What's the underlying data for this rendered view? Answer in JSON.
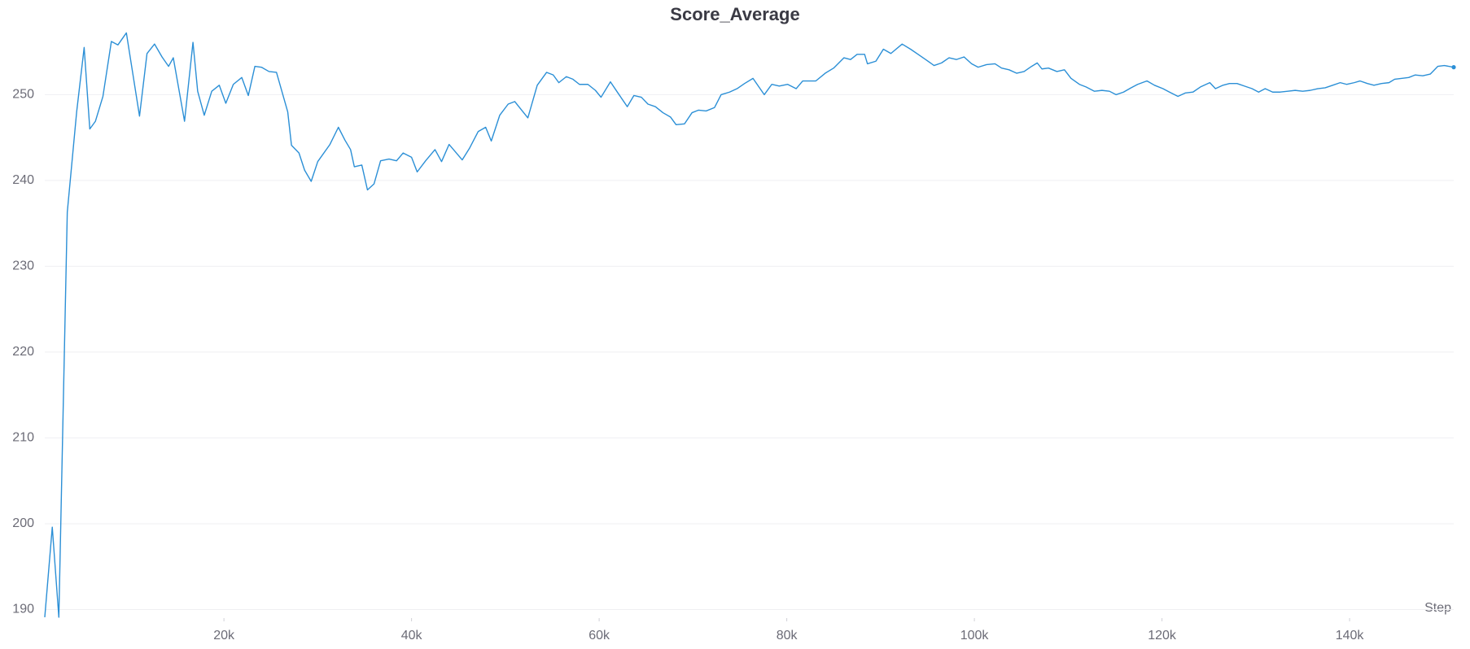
{
  "chart_data": {
    "type": "line",
    "title": "Score_Average",
    "x_label": "Step",
    "color": "#2b8fd6",
    "grid": true,
    "xlim": [
      900,
      151100
    ],
    "ylim": [
      189,
      258
    ],
    "xticks": [
      {
        "value": 20000,
        "label": "20k"
      },
      {
        "value": 40000,
        "label": "40k"
      },
      {
        "value": 60000,
        "label": "60k"
      },
      {
        "value": 80000,
        "label": "80k"
      },
      {
        "value": 100000,
        "label": "100k"
      },
      {
        "value": 120000,
        "label": "120k"
      },
      {
        "value": 140000,
        "label": "140k"
      }
    ],
    "yticks": [
      190,
      200,
      210,
      220,
      230,
      240,
      250
    ],
    "x": [
      900,
      1700,
      2400,
      3300,
      4300,
      5100,
      5700,
      6300,
      7100,
      8000,
      8700,
      9600,
      11000,
      11800,
      12600,
      13400,
      14100,
      14600,
      15800,
      16700,
      17200,
      17900,
      18700,
      19500,
      20200,
      21000,
      21900,
      22600,
      23300,
      24000,
      24800,
      25600,
      26800,
      27200,
      28000,
      28600,
      29300,
      30000,
      31300,
      32200,
      32900,
      33500,
      33900,
      34700,
      35300,
      36000,
      36700,
      37600,
      38400,
      39100,
      40000,
      40600,
      41500,
      42500,
      43200,
      44000,
      44700,
      45400,
      46200,
      47100,
      47900,
      48500,
      49400,
      50300,
      51000,
      52400,
      53400,
      54400,
      55100,
      55700,
      56500,
      57200,
      57900,
      58800,
      59600,
      60200,
      61200,
      62000,
      63000,
      63700,
      64500,
      65200,
      66000,
      66800,
      67600,
      68200,
      69100,
      69900,
      70600,
      71400,
      72300,
      73000,
      73900,
      74700,
      75500,
      76400,
      77600,
      78400,
      79200,
      80100,
      81000,
      81700,
      83100,
      84100,
      85000,
      86100,
      86800,
      87500,
      88300,
      88600,
      89500,
      90300,
      91100,
      92300,
      93200,
      94000,
      94800,
      95700,
      96500,
      97300,
      98100,
      98900,
      99700,
      100400,
      101300,
      102200,
      102900,
      103700,
      104500,
      105300,
      106100,
      106700,
      107200,
      107900,
      108800,
      109600,
      110300,
      111200,
      111900,
      112800,
      113600,
      114400,
      115100,
      115900,
      116700,
      117400,
      118400,
      119200,
      120100,
      120800,
      121700,
      122500,
      123300,
      124100,
      125100,
      125700,
      126500,
      127200,
      128000,
      128800,
      129600,
      130300,
      131000,
      131800,
      132600,
      133400,
      134200,
      135000,
      135800,
      136600,
      137400,
      138200,
      139000,
      139700,
      140500,
      141100,
      141900,
      142600,
      143400,
      144200,
      144800,
      145600,
      146300,
      147000,
      147800,
      148600,
      149400,
      150100,
      151100
    ],
    "values": [
      189.1,
      199.6,
      189.1,
      236.3,
      248,
      255.5,
      246,
      246.9,
      249.8,
      256.2,
      255.8,
      257.2,
      247.5,
      254.8,
      255.9,
      254.4,
      253.3,
      254.3,
      246.9,
      256.1,
      250.4,
      247.6,
      250.4,
      251.1,
      249,
      251.2,
      252,
      249.9,
      253.3,
      253.2,
      252.7,
      252.6,
      248,
      244.1,
      243.2,
      241.2,
      239.9,
      242.2,
      244.2,
      246.2,
      244.7,
      243.6,
      241.6,
      241.8,
      238.9,
      239.6,
      242.3,
      242.5,
      242.3,
      243.2,
      242.7,
      241,
      242.3,
      243.6,
      242.2,
      244.2,
      243.3,
      242.4,
      243.8,
      245.7,
      246.2,
      244.6,
      247.6,
      248.9,
      249.2,
      247.3,
      251.1,
      252.6,
      252.3,
      251.4,
      252.1,
      251.8,
      251.2,
      251.2,
      250.5,
      249.7,
      251.5,
      250.2,
      248.6,
      249.9,
      249.7,
      248.9,
      248.6,
      247.9,
      247.4,
      246.5,
      246.6,
      247.9,
      248.2,
      248.1,
      248.5,
      250,
      250.3,
      250.7,
      251.3,
      251.9,
      250,
      251.2,
      251,
      251.2,
      250.7,
      251.6,
      251.6,
      252.5,
      253.1,
      254.3,
      254.1,
      254.7,
      254.7,
      253.6,
      253.9,
      255.3,
      254.8,
      255.9,
      255.3,
      254.7,
      254.1,
      253.4,
      253.7,
      254.3,
      254.1,
      254.4,
      253.6,
      253.2,
      253.5,
      253.6,
      253.1,
      252.9,
      252.5,
      252.7,
      253.3,
      253.7,
      253,
      253.1,
      252.7,
      252.9,
      251.9,
      251.2,
      250.9,
      250.4,
      250.5,
      250.4,
      250,
      250.3,
      250.8,
      251.2,
      251.6,
      251.1,
      250.7,
      250.3,
      249.8,
      250.2,
      250.3,
      250.9,
      251.4,
      250.7,
      251.1,
      251.3,
      251.3,
      251,
      250.7,
      250.3,
      250.7,
      250.3,
      250.3,
      250.4,
      250.5,
      250.4,
      250.5,
      250.7,
      250.8,
      251.1,
      251.4,
      251.2,
      251.4,
      251.6,
      251.3,
      251.1,
      251.3,
      251.4,
      251.8,
      251.9,
      252,
      252.3,
      252.2,
      252.4,
      253.3,
      253.4,
      253.2
    ]
  }
}
